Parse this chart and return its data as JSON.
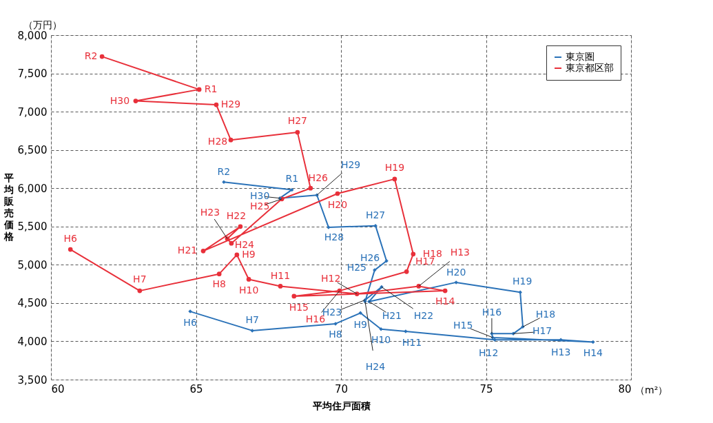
{
  "chart_data": {
    "type": "line",
    "xlabel": "平均住戸面積",
    "ylabel": "平均販売価格",
    "series": [
      {
        "name": "東京圏",
        "color": "#2a72b8",
        "marker": "diamond",
        "x": [
          64.8,
          66.94,
          69.81,
          70.67,
          71.38,
          72.23,
          75.3,
          77.58,
          78.69,
          75.23,
          75.2,
          75.94,
          76.27,
          76.18,
          73.97,
          70.97,
          71.4,
          70.83,
          70.83,
          71.16,
          71.57,
          71.19,
          69.57,
          69.17,
          67.89,
          68.31,
          65.96
        ],
        "values": [
          4390,
          4140,
          4230,
          4370,
          4160,
          4130,
          4020,
          4020,
          3990,
          4050,
          4100,
          4100,
          4190,
          4640,
          4770,
          4520,
          4710,
          4540,
          4520,
          4930,
          5050,
          5510,
          5490,
          5910,
          5870,
          5980,
          6080
        ]
      },
      {
        "name": "東京都区部",
        "color": "#e8303a",
        "marker": "circle",
        "x": [
          60.67,
          63.06,
          65.8,
          66.41,
          66.82,
          67.91,
          70.55,
          72.68,
          73.59,
          68.38,
          69.95,
          72.26,
          72.49,
          71.85,
          69.88,
          65.25,
          66.53,
          66.08,
          66.22,
          67.96,
          68.95,
          68.5,
          66.2,
          65.7,
          62.92,
          65.11,
          61.76
        ],
        "values": [
          5200,
          4660,
          4880,
          5130,
          4810,
          4720,
          4620,
          4720,
          4660,
          4590,
          4660,
          4910,
          5140,
          6120,
          5930,
          5180,
          5500,
          5340,
          5280,
          5860,
          6000,
          6730,
          6630,
          7090,
          7140,
          7290,
          7720
        ]
      }
    ],
    "xlim": [
      60,
      80
    ],
    "xticks": [
      60,
      65,
      70,
      75,
      80
    ],
    "ylim": [
      3500,
      8000
    ],
    "yticks": [
      {
        "value": 3500,
        "label": "3,500"
      },
      {
        "value": 4000,
        "label": "4,000"
      },
      {
        "value": 4500,
        "label": "4,500"
      },
      {
        "value": 5000,
        "label": "5,000"
      },
      {
        "value": 5500,
        "label": "5,500"
      },
      {
        "value": 6000,
        "label": "6,000"
      },
      {
        "value": 6500,
        "label": "6,500"
      },
      {
        "value": 7000,
        "label": "7,000"
      },
      {
        "value": 7500,
        "label": "7,500"
      },
      {
        "value": 8000,
        "label": "8,000"
      }
    ],
    "grid": true,
    "legend": "top right",
    "line_style": "solid",
    "annotations": [
      "（万円）",
      "（m²）",
      {
        "text": "H6",
        "x": 64.8,
        "y": 4390
      },
      {
        "text": "H7",
        "x": 66.94,
        "y": 4140
      },
      {
        "text": "H8",
        "x": 69.81,
        "y": 4230
      },
      {
        "text": "H9",
        "x": 70.67,
        "y": 4370
      },
      {
        "text": "H10",
        "x": 71.38,
        "y": 4160
      },
      {
        "text": "H11",
        "x": 72.23,
        "y": 4130
      },
      {
        "text": "H12",
        "x": 75.3,
        "y": 4020
      },
      {
        "text": "H13",
        "x": 77.58,
        "y": 4020
      },
      {
        "text": "H14",
        "x": 78.69,
        "y": 3990
      },
      {
        "text": "H15",
        "x": 75.23,
        "y": 4050
      },
      {
        "text": "H16",
        "x": 75.2,
        "y": 4100
      },
      {
        "text": "H17",
        "x": 75.94,
        "y": 4100
      },
      {
        "text": "H18",
        "x": 76.27,
        "y": 4190
      },
      {
        "text": "H19",
        "x": 76.18,
        "y": 4640
      },
      {
        "text": "H20",
        "x": 73.97,
        "y": 4770
      },
      {
        "text": "H21",
        "x": 70.97,
        "y": 4520
      },
      {
        "text": "H22",
        "x": 71.4,
        "y": 4710
      },
      {
        "text": "H23",
        "x": 70.83,
        "y": 4540
      },
      {
        "text": "H24",
        "x": 70.83,
        "y": 4520
      },
      {
        "text": "H25",
        "x": 71.16,
        "y": 4930
      },
      {
        "text": "H26",
        "x": 71.57,
        "y": 5050
      },
      {
        "text": "H27",
        "x": 71.19,
        "y": 5510
      },
      {
        "text": "H28",
        "x": 69.57,
        "y": 5490
      },
      {
        "text": "H29",
        "x": 69.17,
        "y": 5910
      },
      {
        "text": "H30",
        "x": 67.89,
        "y": 5870
      },
      {
        "text": "R1",
        "x": 68.31,
        "y": 5980
      },
      {
        "text": "R2",
        "x": 65.96,
        "y": 6080
      },
      {
        "text": "H6",
        "x": 60.67,
        "y": 5200
      },
      {
        "text": "H7",
        "x": 63.06,
        "y": 4660
      },
      {
        "text": "H8",
        "x": 65.8,
        "y": 4880
      },
      {
        "text": "H9",
        "x": 66.41,
        "y": 5130
      },
      {
        "text": "H10",
        "x": 66.82,
        "y": 4810
      },
      {
        "text": "H11",
        "x": 67.91,
        "y": 4720
      },
      {
        "text": "H12",
        "x": 70.55,
        "y": 4620
      },
      {
        "text": "H13",
        "x": 72.68,
        "y": 4720
      },
      {
        "text": "H14",
        "x": 73.59,
        "y": 4660
      },
      {
        "text": "H15",
        "x": 68.38,
        "y": 4590
      },
      {
        "text": "H16",
        "x": 69.95,
        "y": 4660
      },
      {
        "text": "H17",
        "x": 72.26,
        "y": 4910
      },
      {
        "text": "H18",
        "x": 72.49,
        "y": 5140
      },
      {
        "text": "H19",
        "x": 71.85,
        "y": 6120
      },
      {
        "text": "H20",
        "x": 69.88,
        "y": 5930
      },
      {
        "text": "H21",
        "x": 65.25,
        "y": 5180
      },
      {
        "text": "H22",
        "x": 66.53,
        "y": 5500
      },
      {
        "text": "H23",
        "x": 66.08,
        "y": 5340
      },
      {
        "text": "H24",
        "x": 66.22,
        "y": 5280
      },
      {
        "text": "H25",
        "x": 67.96,
        "y": 5860
      },
      {
        "text": "H26",
        "x": 68.95,
        "y": 6000
      },
      {
        "text": "H27",
        "x": 68.5,
        "y": 6730
      },
      {
        "text": "H28",
        "x": 66.2,
        "y": 6630
      },
      {
        "text": "H29",
        "x": 65.7,
        "y": 7090
      },
      {
        "text": "H30",
        "x": 62.92,
        "y": 7140
      },
      {
        "text": "R1",
        "x": 65.11,
        "y": 7290
      },
      {
        "text": "R2",
        "x": 61.76,
        "y": 7720
      }
    ]
  }
}
